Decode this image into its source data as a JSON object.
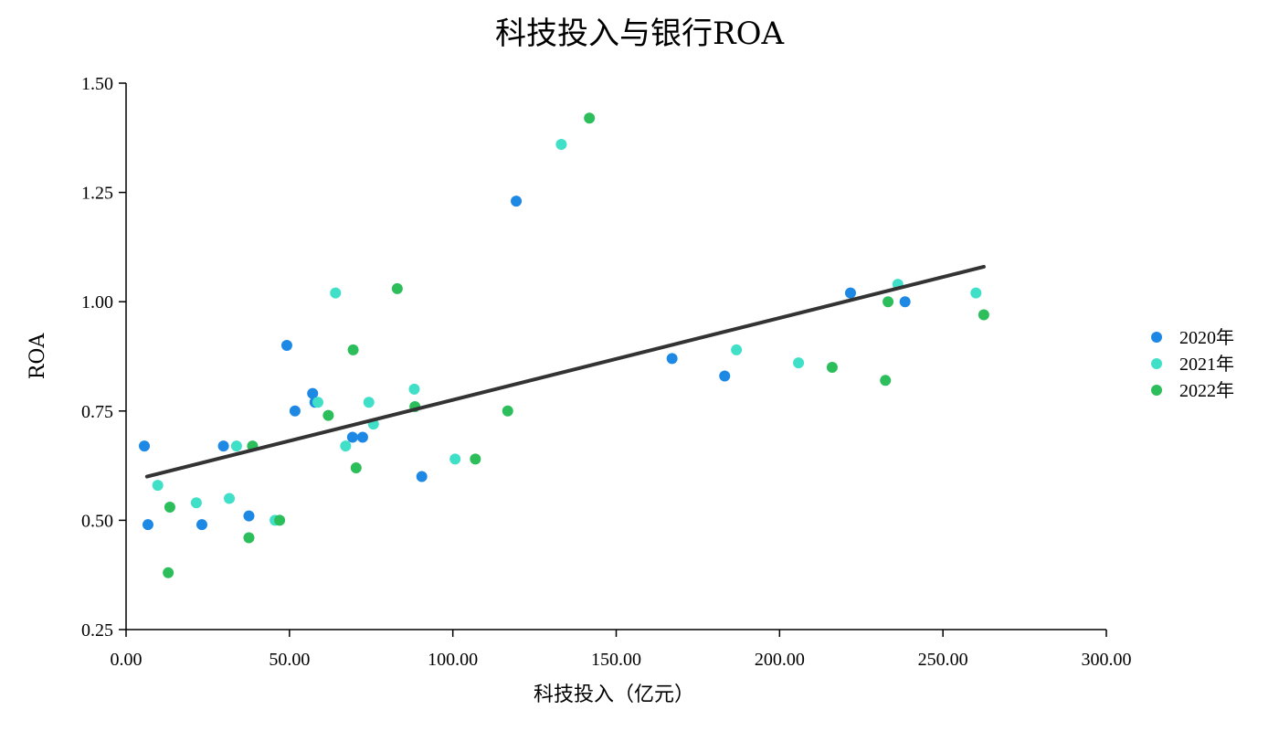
{
  "chart_data": {
    "type": "scatter",
    "title": "科技投入与银行ROA",
    "xlabel": "科技投入（亿元）",
    "ylabel": "ROA",
    "xlim": [
      0,
      300
    ],
    "ylim": [
      0.25,
      1.5
    ],
    "x_ticks": [
      0,
      50,
      100,
      150,
      200,
      250,
      300
    ],
    "x_tick_labels": [
      "0.00",
      "50.00",
      "100.00",
      "150.00",
      "200.00",
      "250.00",
      "300.00"
    ],
    "y_ticks": [
      0.25,
      0.5,
      0.75,
      1.0,
      1.25,
      1.5
    ],
    "y_tick_labels": [
      "0.25",
      "0.50",
      "0.75",
      "1.00",
      "1.25",
      "1.50"
    ],
    "grid": false,
    "legend_position": "right",
    "series": [
      {
        "name": "2020年",
        "color": "#1e88e5",
        "points": [
          [
            5.6,
            0.67
          ],
          [
            6.7,
            0.49
          ],
          [
            23.2,
            0.49
          ],
          [
            29.8,
            0.67
          ],
          [
            37.6,
            0.51
          ],
          [
            49.2,
            0.9
          ],
          [
            51.7,
            0.75
          ],
          [
            57.1,
            0.79
          ],
          [
            57.8,
            0.77
          ],
          [
            69.3,
            0.69
          ],
          [
            72.4,
            0.69
          ],
          [
            90.5,
            0.6
          ],
          [
            119.4,
            1.23
          ],
          [
            167.1,
            0.87
          ],
          [
            183.2,
            0.83
          ],
          [
            221.7,
            1.02
          ],
          [
            238.4,
            1.0
          ]
        ]
      },
      {
        "name": "2021年",
        "color": "#40e0c8",
        "points": [
          [
            9.7,
            0.58
          ],
          [
            21.5,
            0.54
          ],
          [
            31.6,
            0.55
          ],
          [
            33.8,
            0.67
          ],
          [
            45.6,
            0.5
          ],
          [
            58.7,
            0.77
          ],
          [
            64.1,
            1.02
          ],
          [
            67.2,
            0.67
          ],
          [
            74.3,
            0.77
          ],
          [
            75.7,
            0.72
          ],
          [
            88.2,
            0.8
          ],
          [
            100.7,
            0.64
          ],
          [
            133.2,
            1.36
          ],
          [
            186.8,
            0.89
          ],
          [
            205.8,
            0.86
          ],
          [
            236.2,
            1.04
          ],
          [
            260.1,
            1.02
          ]
        ]
      },
      {
        "name": "2022年",
        "color": "#2dbe5c",
        "points": [
          [
            12.9,
            0.38
          ],
          [
            13.4,
            0.53
          ],
          [
            37.6,
            0.46
          ],
          [
            38.7,
            0.67
          ],
          [
            47.0,
            0.5
          ],
          [
            61.9,
            0.74
          ],
          [
            69.5,
            0.89
          ],
          [
            70.4,
            0.62
          ],
          [
            83.0,
            1.03
          ],
          [
            88.4,
            0.76
          ],
          [
            106.9,
            0.64
          ],
          [
            116.8,
            0.75
          ],
          [
            141.8,
            1.42
          ],
          [
            216.1,
            0.85
          ],
          [
            232.4,
            0.82
          ],
          [
            233.2,
            1.0
          ],
          [
            262.5,
            0.97
          ]
        ]
      }
    ],
    "trend_line": {
      "color": "#333333",
      "points": [
        [
          6.4,
          0.6
        ],
        [
          262.5,
          1.08
        ]
      ]
    }
  }
}
